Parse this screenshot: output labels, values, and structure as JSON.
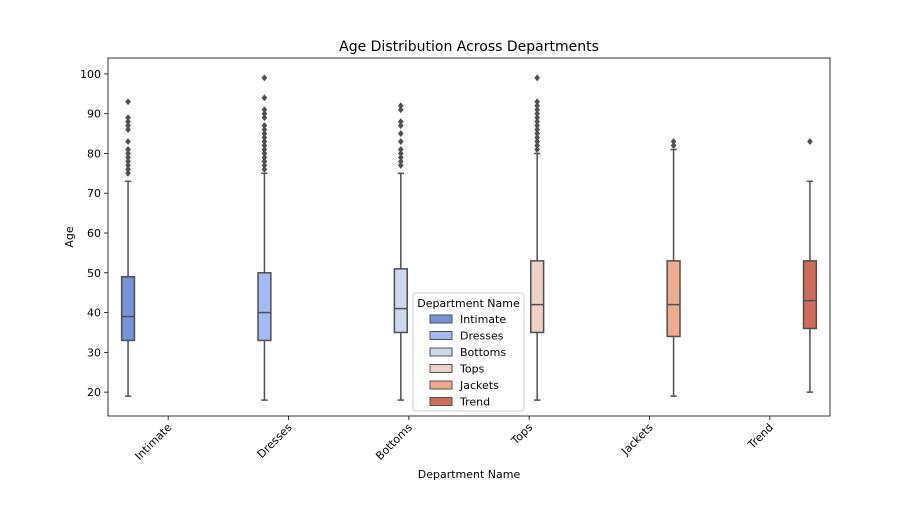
{
  "chart_data": {
    "type": "box",
    "title": "Age Distribution Across Departments",
    "xlabel": "Department Name",
    "ylabel": "Age",
    "categories": [
      "Intimate",
      "Dresses",
      "Bottoms",
      "Tops",
      "Jackets",
      "Trend"
    ],
    "ylim": [
      14,
      104
    ],
    "yticks": [
      20,
      30,
      40,
      50,
      60,
      70,
      80,
      90,
      100
    ],
    "grid": false,
    "legend": {
      "title": "Department Name",
      "placement": "lower center",
      "entries": [
        "Intimate",
        "Dresses",
        "Bottoms",
        "Tops",
        "Jackets",
        "Trend"
      ]
    },
    "series": [
      {
        "name": "Intimate",
        "color": "#7393dc",
        "whisker_low": 19,
        "q1": 33,
        "median": 39,
        "q3": 49,
        "whisker_high": 73,
        "outliers": [
          75,
          76,
          77,
          78,
          79,
          80,
          81,
          83,
          86,
          87,
          88,
          89,
          93
        ]
      },
      {
        "name": "Dresses",
        "color": "#a0bbf5",
        "whisker_low": 18,
        "q1": 33,
        "median": 40,
        "q3": 50,
        "whisker_high": 75,
        "outliers": [
          76,
          77,
          78,
          79,
          80,
          81,
          82,
          83,
          84,
          85,
          86,
          87,
          89,
          90,
          91,
          94,
          99
        ]
      },
      {
        "name": "Bottoms",
        "color": "#cbd8ee",
        "whisker_low": 18,
        "q1": 35,
        "median": 41,
        "q3": 51,
        "whisker_high": 75,
        "outliers": [
          77,
          78,
          79,
          80,
          81,
          83,
          85,
          87,
          88,
          91,
          92
        ]
      },
      {
        "name": "Tops",
        "color": "#edd1c2",
        "whisker_low": 18,
        "q1": 35,
        "median": 42,
        "q3": 53,
        "whisker_high": 80,
        "outliers": [
          81,
          82,
          83,
          84,
          85,
          86,
          87,
          88,
          89,
          90,
          91,
          92,
          93,
          99
        ]
      },
      {
        "name": "Jackets",
        "color": "#efab8c",
        "whisker_low": 19,
        "q1": 34,
        "median": 42,
        "q3": 53,
        "whisker_high": 81,
        "outliers": [
          82,
          83
        ]
      },
      {
        "name": "Trend",
        "color": "#d06b57",
        "whisker_low": 20,
        "q1": 36,
        "median": 43,
        "q3": 53,
        "whisker_high": 73,
        "outliers": [
          83
        ]
      }
    ]
  }
}
